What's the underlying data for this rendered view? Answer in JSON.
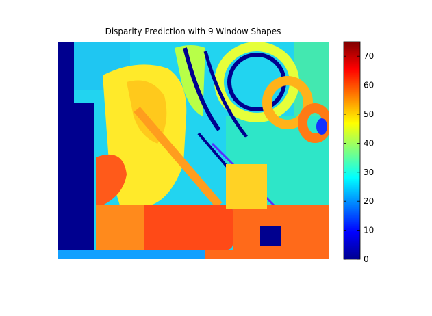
{
  "chart_data": {
    "type": "heatmap",
    "title": "Disparity Prediction with 9 Window Shapes",
    "xlabel": "",
    "ylabel": "",
    "grid": false,
    "axes_visible": false,
    "colormap": "jet",
    "colorbar": {
      "location": "right",
      "clim": [
        0,
        75
      ],
      "ticks": [
        0,
        10,
        20,
        30,
        40,
        50,
        60,
        70
      ],
      "tick_labels": [
        "0",
        "10",
        "20",
        "30",
        "40",
        "50",
        "60",
        "70"
      ]
    },
    "colors": {
      "low": "#00008f",
      "mid": "#7fff7f",
      "high": "#7f0000"
    },
    "image_description_values": {
      "background_level": 33,
      "left_band_level": 1,
      "foreground_cup_level": 62
    }
  }
}
